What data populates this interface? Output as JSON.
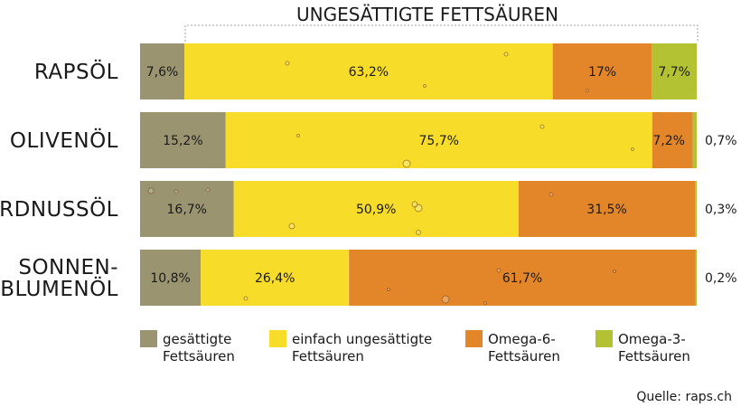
{
  "chart_data": {
    "type": "bar",
    "orientation": "horizontal",
    "stacked": true,
    "title": "UNGESÄTTIGTE FETTSÄUREN",
    "source": "Quelle: raps.ch",
    "colors": {
      "saturated": "#9a9470",
      "mono": "#f7dc2a",
      "omega6": "#e3862a",
      "omega3": "#b3c232"
    },
    "categories": [
      {
        "line1": "RAPSÖL",
        "line2": ""
      },
      {
        "line1": "OLIVENÖL",
        "line2": ""
      },
      {
        "line1": "ERDNUSSÖL",
        "line2": ""
      },
      {
        "line1": "SONNEN-",
        "line2": "BLUMENÖL"
      }
    ],
    "series": [
      {
        "key": "saturated",
        "name": "gesättigte Fettsäuren",
        "legend_line1": "gesättigte",
        "legend_line2": "Fettsäuren",
        "values": [
          7.6,
          15.2,
          16.7,
          10.8
        ],
        "labels": [
          "7,6%",
          "15,2%",
          "16,7%",
          "10,8%"
        ]
      },
      {
        "key": "mono",
        "name": "einfach ungesättigte Fettsäuren",
        "legend_line1": "einfach ungesättigte",
        "legend_line2": "Fettsäuren",
        "values": [
          63.2,
          75.7,
          50.9,
          26.4
        ],
        "labels": [
          "63,2%",
          "75,7%",
          "50,9%",
          "26,4%"
        ]
      },
      {
        "key": "omega6",
        "name": "Omega-6-Fettsäuren",
        "legend_line1": "Omega-6-",
        "legend_line2": "Fettsäuren",
        "values": [
          17,
          7.2,
          31.5,
          61.7
        ],
        "labels": [
          "17%",
          "7,2%",
          "31,5%",
          "61,7%"
        ]
      },
      {
        "key": "omega3",
        "name": "Omega-3-Fettsäuren",
        "legend_line1": "Omega-3-",
        "legend_line2": "Fettsäuren",
        "values": [
          7.7,
          0.7,
          0.3,
          0.2
        ],
        "labels": [
          "7,7%",
          "0,7%",
          "0,3%",
          "0,2%"
        ]
      }
    ],
    "xlim": [
      0,
      100
    ],
    "legend_position": "bottom"
  }
}
